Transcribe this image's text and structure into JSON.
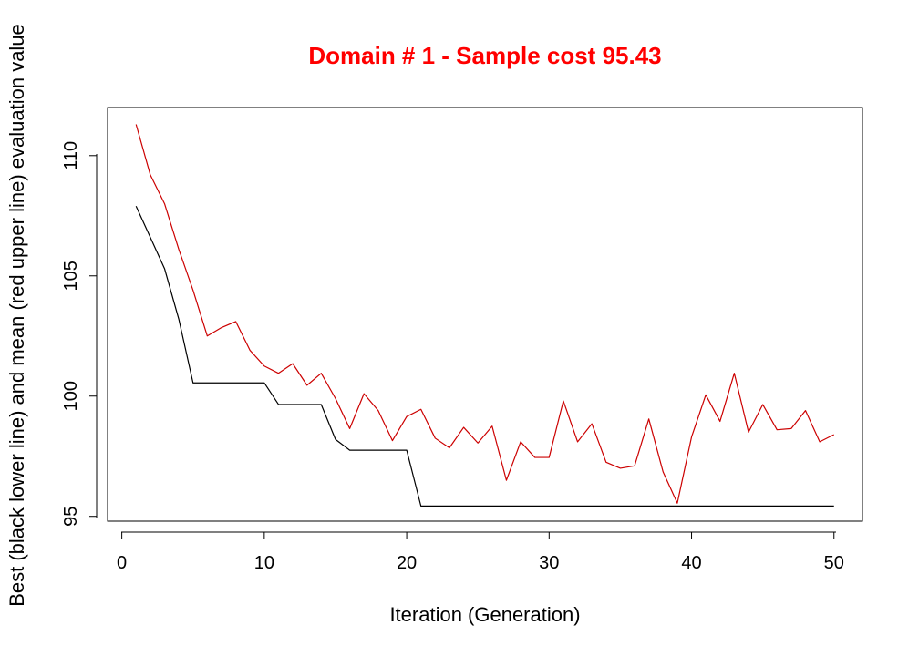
{
  "chart_data": {
    "type": "line",
    "title": "Domain # 1  - Sample cost 95.43",
    "xlabel": "Iteration (Generation)",
    "ylabel": "Best (black lower line) and mean (red upper line) evaluation value",
    "xlim": [
      -1,
      52
    ],
    "ylim": [
      94.8,
      112
    ],
    "xticks": [
      0,
      10,
      20,
      30,
      40,
      50
    ],
    "yticks": [
      95,
      100,
      105,
      110
    ],
    "grid": false,
    "x": [
      1,
      2,
      3,
      4,
      5,
      6,
      7,
      8,
      9,
      10,
      11,
      12,
      13,
      14,
      15,
      16,
      17,
      18,
      19,
      20,
      21,
      22,
      23,
      24,
      25,
      26,
      27,
      28,
      29,
      30,
      31,
      32,
      33,
      34,
      35,
      36,
      37,
      38,
      39,
      40,
      41,
      42,
      43,
      44,
      45,
      46,
      47,
      48,
      49,
      50
    ],
    "series": [
      {
        "color": "#000000",
        "values": [
          107.9,
          106.6,
          105.3,
          103.2,
          100.55,
          100.55,
          100.55,
          100.55,
          100.55,
          100.55,
          99.65,
          99.65,
          99.65,
          99.65,
          98.2,
          97.75,
          97.75,
          97.75,
          97.75,
          97.75,
          95.43,
          95.43,
          95.43,
          95.43,
          95.43,
          95.43,
          95.43,
          95.43,
          95.43,
          95.43,
          95.43,
          95.43,
          95.43,
          95.43,
          95.43,
          95.43,
          95.43,
          95.43,
          95.43,
          95.43,
          95.43,
          95.43,
          95.43,
          95.43,
          95.43,
          95.43,
          95.43,
          95.43,
          95.43,
          95.43
        ]
      },
      {
        "color": "#cc0000",
        "values": [
          111.3,
          109.2,
          108.0,
          106.1,
          104.4,
          102.5,
          102.85,
          103.1,
          101.9,
          101.25,
          100.95,
          101.35,
          100.45,
          100.95,
          99.9,
          98.65,
          100.1,
          99.4,
          98.15,
          99.15,
          99.45,
          98.25,
          97.85,
          98.7,
          98.05,
          98.75,
          96.5,
          98.1,
          97.45,
          97.45,
          99.8,
          98.1,
          98.85,
          97.25,
          97.0,
          97.1,
          99.05,
          96.85,
          95.55,
          98.3,
          100.05,
          98.95,
          100.95,
          98.5,
          99.65,
          98.6,
          98.65,
          99.4,
          98.1,
          98.4
        ]
      }
    ]
  }
}
